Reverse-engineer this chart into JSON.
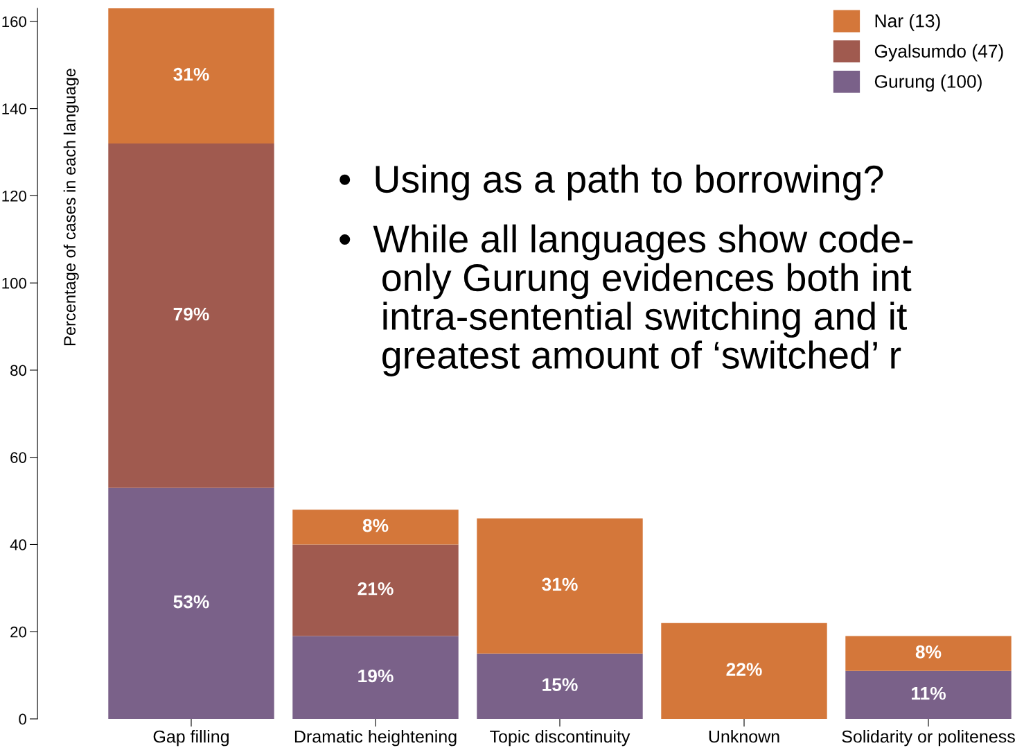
{
  "chart_data": {
    "type": "bar",
    "stacked": true,
    "ylabel": "Percentage of cases in each language",
    "categories": [
      "Gap filling",
      "Dramatic heightening",
      "Topic discontinuity",
      "Unknown",
      "Solidarity or politeness"
    ],
    "series": [
      {
        "name": "Gurung (100)",
        "color": "#7a6189",
        "values": [
          53,
          19,
          15,
          null,
          11
        ],
        "value_labels": [
          "53%",
          "19%",
          "15%",
          null,
          "11%"
        ]
      },
      {
        "name": "Gyalsumdo (47)",
        "color": "#a05a4f",
        "values": [
          79,
          21,
          null,
          null,
          null
        ],
        "value_labels": [
          "79%",
          "21%",
          null,
          null,
          null
        ]
      },
      {
        "name": "Nar (13)",
        "color": "#d4773a",
        "values": [
          31,
          8,
          31,
          22,
          8
        ],
        "value_labels": [
          "31%",
          "8%",
          "31%",
          "22%",
          "8%"
        ]
      }
    ],
    "ylim": [
      0,
      163
    ],
    "yticks": [
      0,
      20,
      40,
      60,
      80,
      100,
      120,
      140,
      160
    ],
    "grid": false,
    "legend": "top right",
    "annotations": [
      "•  Using as a path to borrowing?",
      "•  While all languages show code-\n    only Gurung evidences both int\n    intra-sentential switching and it\n    greatest amount of ‘switched’ r"
    ]
  }
}
